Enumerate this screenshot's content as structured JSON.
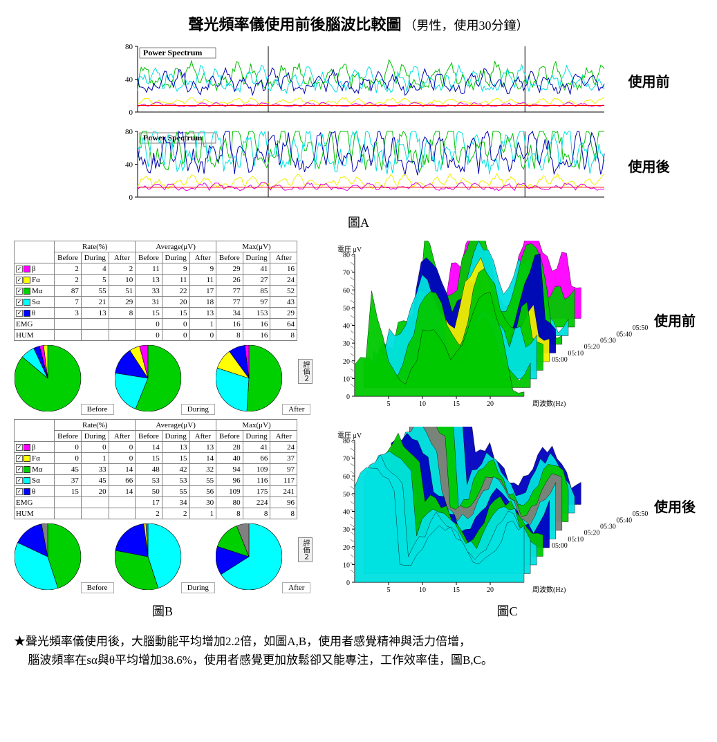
{
  "title": {
    "main": "聲光頻率儀使用前後腦波比較圖",
    "sub": "（男性，使用30分鐘）",
    "main_fontsize": 22,
    "sub_fontsize": 18
  },
  "figA": {
    "panel_label": "Power Spectrum",
    "y_ticks": [
      0,
      40,
      80
    ],
    "caption": "圖A",
    "before_label": "使用前",
    "after_label": "使用後",
    "line_colors": {
      "green": "#00c000",
      "cyan": "#00e0e0",
      "blue": "#0000b0",
      "yellow": "#f0f000",
      "magenta": "#e000e0",
      "red": "#ff0000"
    },
    "background": "#ffffff",
    "axis_color": "#000000"
  },
  "figB": {
    "caption": "圖B",
    "pie_labels": {
      "before": "Before",
      "during": "During",
      "after": "After"
    },
    "eval_button": "評価２",
    "header_groups": [
      "Rate(%)",
      "Average(μV)",
      "Max(μV)"
    ],
    "subheaders": [
      "Before",
      "During",
      "After"
    ],
    "wave_labels": [
      "β",
      "Fα",
      "Mα",
      "Sα",
      "θ",
      "EMG",
      "HUM"
    ],
    "wave_colors": {
      "β": "#ff00ff",
      "Fα": "#ffff00",
      "Mα": "#00d000",
      "Sα": "#00ffff",
      "θ": "#0000ff",
      "EMG": "#ffffff",
      "HUM": "#ffffff"
    },
    "panel_before": {
      "rows": [
        {
          "wave": "β",
          "rate": [
            2,
            4,
            2
          ],
          "avg": [
            11,
            9,
            9
          ],
          "max": [
            29,
            41,
            16
          ]
        },
        {
          "wave": "Fα",
          "rate": [
            2,
            5,
            10
          ],
          "avg": [
            13,
            11,
            11
          ],
          "max": [
            26,
            27,
            24
          ]
        },
        {
          "wave": "Mα",
          "rate": [
            87,
            55,
            51
          ],
          "avg": [
            33,
            22,
            17
          ],
          "max": [
            77,
            85,
            52
          ]
        },
        {
          "wave": "Sα",
          "rate": [
            7,
            21,
            29
          ],
          "avg": [
            31,
            20,
            18
          ],
          "max": [
            77,
            97,
            43
          ]
        },
        {
          "wave": "θ",
          "rate": [
            3,
            13,
            8
          ],
          "avg": [
            15,
            15,
            13
          ],
          "max": [
            34,
            153,
            29
          ]
        },
        {
          "wave": "EMG",
          "rate": [
            "",
            "",
            ""
          ],
          "avg": [
            0,
            0,
            1
          ],
          "max": [
            16,
            16,
            64
          ]
        },
        {
          "wave": "HUM",
          "rate": [
            "",
            "",
            ""
          ],
          "avg": [
            0,
            0,
            0
          ],
          "max": [
            8,
            16,
            8
          ]
        }
      ],
      "pies": {
        "before": [
          {
            "c": "#00d000",
            "v": 87
          },
          {
            "c": "#00ffff",
            "v": 7
          },
          {
            "c": "#0000ff",
            "v": 3
          },
          {
            "c": "#ff00ff",
            "v": 2
          },
          {
            "c": "#ffff00",
            "v": 2
          }
        ],
        "during": [
          {
            "c": "#00d000",
            "v": 55
          },
          {
            "c": "#00ffff",
            "v": 21
          },
          {
            "c": "#0000ff",
            "v": 13
          },
          {
            "c": "#ffff00",
            "v": 5
          },
          {
            "c": "#ff00ff",
            "v": 4
          }
        ],
        "after": [
          {
            "c": "#00d000",
            "v": 51
          },
          {
            "c": "#00ffff",
            "v": 29
          },
          {
            "c": "#ffff00",
            "v": 10
          },
          {
            "c": "#0000ff",
            "v": 8
          },
          {
            "c": "#ff00ff",
            "v": 2
          }
        ]
      }
    },
    "panel_after": {
      "rows": [
        {
          "wave": "β",
          "rate": [
            0,
            0,
            0
          ],
          "avg": [
            14,
            13,
            13
          ],
          "max": [
            28,
            41,
            24
          ]
        },
        {
          "wave": "Fα",
          "rate": [
            0,
            1,
            0
          ],
          "avg": [
            15,
            15,
            14
          ],
          "max": [
            40,
            66,
            37
          ]
        },
        {
          "wave": "Mα",
          "rate": [
            45,
            33,
            14
          ],
          "avg": [
            48,
            42,
            32
          ],
          "max": [
            94,
            109,
            97
          ]
        },
        {
          "wave": "Sα",
          "rate": [
            37,
            45,
            66
          ],
          "avg": [
            53,
            53,
            55
          ],
          "max": [
            96,
            116,
            117
          ]
        },
        {
          "wave": "θ",
          "rate": [
            15,
            20,
            14
          ],
          "avg": [
            50,
            55,
            56
          ],
          "max": [
            109,
            175,
            241
          ]
        },
        {
          "wave": "EMG",
          "rate": [
            "",
            "",
            ""
          ],
          "avg": [
            17,
            34,
            30
          ],
          "max": [
            80,
            224,
            96
          ]
        },
        {
          "wave": "HUM",
          "rate": [
            "",
            "",
            ""
          ],
          "avg": [
            2,
            2,
            1
          ],
          "max": [
            8,
            8,
            8
          ]
        }
      ],
      "pies": {
        "before": [
          {
            "c": "#00d000",
            "v": 45
          },
          {
            "c": "#00ffff",
            "v": 37
          },
          {
            "c": "#0000ff",
            "v": 15
          },
          {
            "c": "#808080",
            "v": 3
          }
        ],
        "during": [
          {
            "c": "#00ffff",
            "v": 45
          },
          {
            "c": "#00d000",
            "v": 33
          },
          {
            "c": "#0000ff",
            "v": 20
          },
          {
            "c": "#ffff00",
            "v": 1
          },
          {
            "c": "#808080",
            "v": 1
          }
        ],
        "after": [
          {
            "c": "#00ffff",
            "v": 66
          },
          {
            "c": "#0000ff",
            "v": 14
          },
          {
            "c": "#00d000",
            "v": 14
          },
          {
            "c": "#808080",
            "v": 6
          }
        ]
      }
    }
  },
  "figC": {
    "caption": "圖C",
    "y_label": "電圧 μV",
    "x_label": "周波数(Hz)",
    "y_ticks": [
      0,
      10,
      20,
      30,
      40,
      50,
      60,
      70,
      80
    ],
    "x_ticks": [
      5,
      10,
      15,
      20
    ],
    "time_labels": [
      "05:00",
      "05:10",
      "05:20",
      "05:30",
      "05:40",
      "05:50"
    ],
    "before_label": "使用前",
    "after_label": "使用後",
    "colors": {
      "cyan": "#00e0e0",
      "green": "#00c800",
      "blue": "#0000c0",
      "yellow": "#f0f000",
      "magenta": "#ff00ff",
      "gray": "#808080"
    },
    "background": "#ffffff",
    "axis_color": "#000000"
  },
  "footnote": {
    "star": "★",
    "line1": "聲光頻率儀使用後，大腦動能平均增加2.2倍，如圖A,B，使用者感覺精神與活力倍增，",
    "line2": "腦波頻率在sα與θ平均增加38.6%，使用者感覺更加放鬆卻又能專注，工作效率佳，圖B,C。"
  }
}
